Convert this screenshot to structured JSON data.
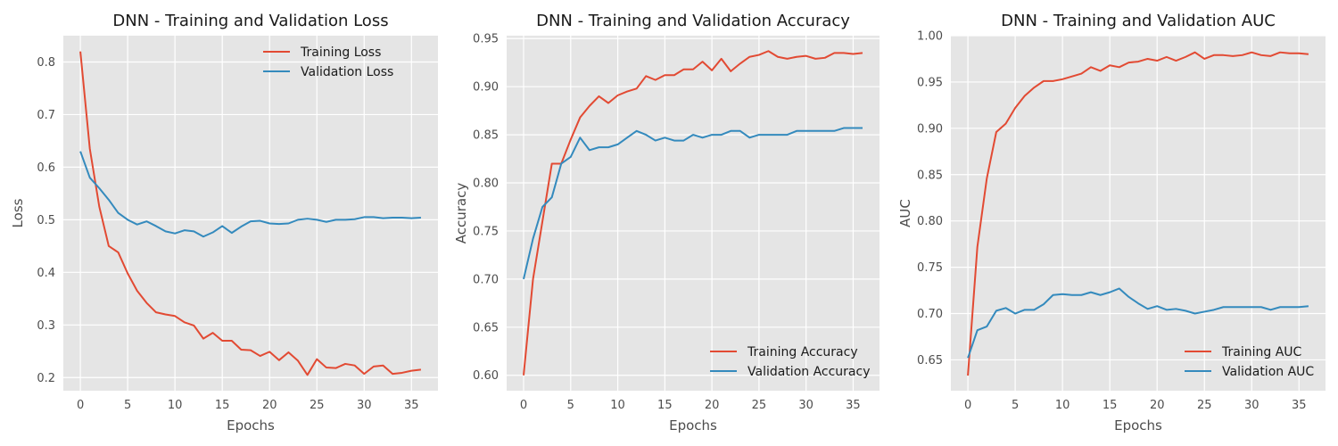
{
  "colors": {
    "training": "#e24a33",
    "validation": "#348abd"
  },
  "chart_data": [
    {
      "type": "line",
      "title": "DNN - Training and Validation Loss",
      "xlabel": "Epochs",
      "ylabel": "Loss",
      "xlim": [
        -1.8,
        37.8
      ],
      "ylim": [
        0.175,
        0.85
      ],
      "xticks": [
        0,
        5,
        10,
        15,
        20,
        25,
        30,
        35
      ],
      "yticks": [
        0.2,
        0.3,
        0.4,
        0.5,
        0.6,
        0.7,
        0.8
      ],
      "ytick_labels": [
        "0.2",
        "0.3",
        "0.4",
        "0.5",
        "0.6",
        "0.7",
        "0.8"
      ],
      "legend_position": "upper right",
      "grid": true,
      "x": [
        0,
        1,
        2,
        3,
        4,
        5,
        6,
        7,
        8,
        9,
        10,
        11,
        12,
        13,
        14,
        15,
        16,
        17,
        18,
        19,
        20,
        21,
        22,
        23,
        24,
        25,
        26,
        27,
        28,
        29,
        30,
        31,
        32,
        33,
        34,
        35,
        36
      ],
      "series": [
        {
          "name": "Training Loss",
          "color_key": "training",
          "values": [
            0.82,
            0.635,
            0.525,
            0.45,
            0.438,
            0.398,
            0.365,
            0.342,
            0.324,
            0.32,
            0.317,
            0.305,
            0.299,
            0.274,
            0.285,
            0.27,
            0.27,
            0.253,
            0.252,
            0.241,
            0.249,
            0.233,
            0.248,
            0.232,
            0.205,
            0.235,
            0.219,
            0.218,
            0.226,
            0.223,
            0.207,
            0.221,
            0.223,
            0.207,
            0.209,
            0.213,
            0.215
          ]
        },
        {
          "name": "Validation Loss",
          "color_key": "validation",
          "values": [
            0.63,
            0.58,
            0.56,
            0.538,
            0.513,
            0.5,
            0.491,
            0.497,
            0.488,
            0.478,
            0.474,
            0.48,
            0.478,
            0.468,
            0.476,
            0.488,
            0.475,
            0.487,
            0.497,
            0.498,
            0.493,
            0.492,
            0.493,
            0.5,
            0.502,
            0.5,
            0.496,
            0.5,
            0.5,
            0.501,
            0.505,
            0.505,
            0.503,
            0.504,
            0.504,
            0.503,
            0.504
          ]
        }
      ]
    },
    {
      "type": "line",
      "title": "DNN - Training and Validation Accuracy",
      "xlabel": "Epochs",
      "ylabel": "Accuracy",
      "xlim": [
        -1.8,
        37.8
      ],
      "ylim": [
        0.584,
        0.953
      ],
      "xticks": [
        0,
        5,
        10,
        15,
        20,
        25,
        30,
        35
      ],
      "yticks": [
        0.6,
        0.65,
        0.7,
        0.75,
        0.8,
        0.85,
        0.9,
        0.95
      ],
      "ytick_labels": [
        "0.60",
        "0.65",
        "0.70",
        "0.75",
        "0.80",
        "0.85",
        "0.90",
        "0.95"
      ],
      "legend_position": "lower right",
      "grid": true,
      "x": [
        0,
        1,
        2,
        3,
        4,
        5,
        6,
        7,
        8,
        9,
        10,
        11,
        12,
        13,
        14,
        15,
        16,
        17,
        18,
        19,
        20,
        21,
        22,
        23,
        24,
        25,
        26,
        27,
        28,
        29,
        30,
        31,
        32,
        33,
        34,
        35,
        36
      ],
      "series": [
        {
          "name": "Training Accuracy",
          "color_key": "training",
          "values": [
            0.6,
            0.7,
            0.76,
            0.82,
            0.82,
            0.845,
            0.868,
            0.88,
            0.89,
            0.883,
            0.891,
            0.895,
            0.898,
            0.911,
            0.907,
            0.912,
            0.912,
            0.918,
            0.918,
            0.926,
            0.917,
            0.929,
            0.916,
            0.924,
            0.931,
            0.933,
            0.937,
            0.931,
            0.929,
            0.931,
            0.932,
            0.929,
            0.93,
            0.935,
            0.935,
            0.934,
            0.935
          ]
        },
        {
          "name": "Validation Accuracy",
          "color_key": "validation",
          "values": [
            0.7,
            0.742,
            0.775,
            0.785,
            0.82,
            0.827,
            0.847,
            0.834,
            0.837,
            0.837,
            0.84,
            0.847,
            0.854,
            0.85,
            0.844,
            0.847,
            0.844,
            0.844,
            0.85,
            0.847,
            0.85,
            0.85,
            0.854,
            0.854,
            0.847,
            0.85,
            0.85,
            0.85,
            0.85,
            0.854,
            0.854,
            0.854,
            0.854,
            0.854,
            0.857,
            0.857,
            0.857
          ]
        }
      ]
    },
    {
      "type": "line",
      "title": "DNN - Training and Validation AUC",
      "xlabel": "Epochs",
      "ylabel": "AUC",
      "xlim": [
        -1.8,
        37.8
      ],
      "ylim": [
        0.6167,
        1.0
      ],
      "xticks": [
        0,
        5,
        10,
        15,
        20,
        25,
        30,
        35
      ],
      "yticks": [
        0.65,
        0.7,
        0.75,
        0.8,
        0.85,
        0.9,
        0.95,
        1.0
      ],
      "ytick_labels": [
        "0.65",
        "0.70",
        "0.75",
        "0.80",
        "0.85",
        "0.90",
        "0.95",
        "1.00"
      ],
      "legend_position": "lower right",
      "grid": true,
      "x": [
        0,
        1,
        2,
        3,
        4,
        5,
        6,
        7,
        8,
        9,
        10,
        11,
        12,
        13,
        14,
        15,
        16,
        17,
        18,
        19,
        20,
        21,
        22,
        23,
        24,
        25,
        26,
        27,
        28,
        29,
        30,
        31,
        32,
        33,
        34,
        35,
        36
      ],
      "series": [
        {
          "name": "Training AUC",
          "color_key": "training",
          "values": [
            0.633,
            0.772,
            0.846,
            0.896,
            0.905,
            0.922,
            0.935,
            0.944,
            0.951,
            0.951,
            0.953,
            0.956,
            0.959,
            0.966,
            0.962,
            0.968,
            0.966,
            0.971,
            0.972,
            0.975,
            0.973,
            0.977,
            0.973,
            0.977,
            0.982,
            0.975,
            0.979,
            0.979,
            0.978,
            0.979,
            0.982,
            0.979,
            0.978,
            0.982,
            0.981,
            0.981,
            0.98
          ]
        },
        {
          "name": "Validation AUC",
          "color_key": "validation",
          "values": [
            0.652,
            0.682,
            0.686,
            0.703,
            0.706,
            0.7,
            0.704,
            0.704,
            0.71,
            0.72,
            0.721,
            0.72,
            0.72,
            0.723,
            0.72,
            0.723,
            0.727,
            0.718,
            0.711,
            0.705,
            0.708,
            0.704,
            0.705,
            0.703,
            0.7,
            0.702,
            0.704,
            0.707,
            0.707,
            0.707,
            0.707,
            0.707,
            0.704,
            0.707,
            0.707,
            0.707,
            0.708
          ]
        }
      ]
    }
  ]
}
